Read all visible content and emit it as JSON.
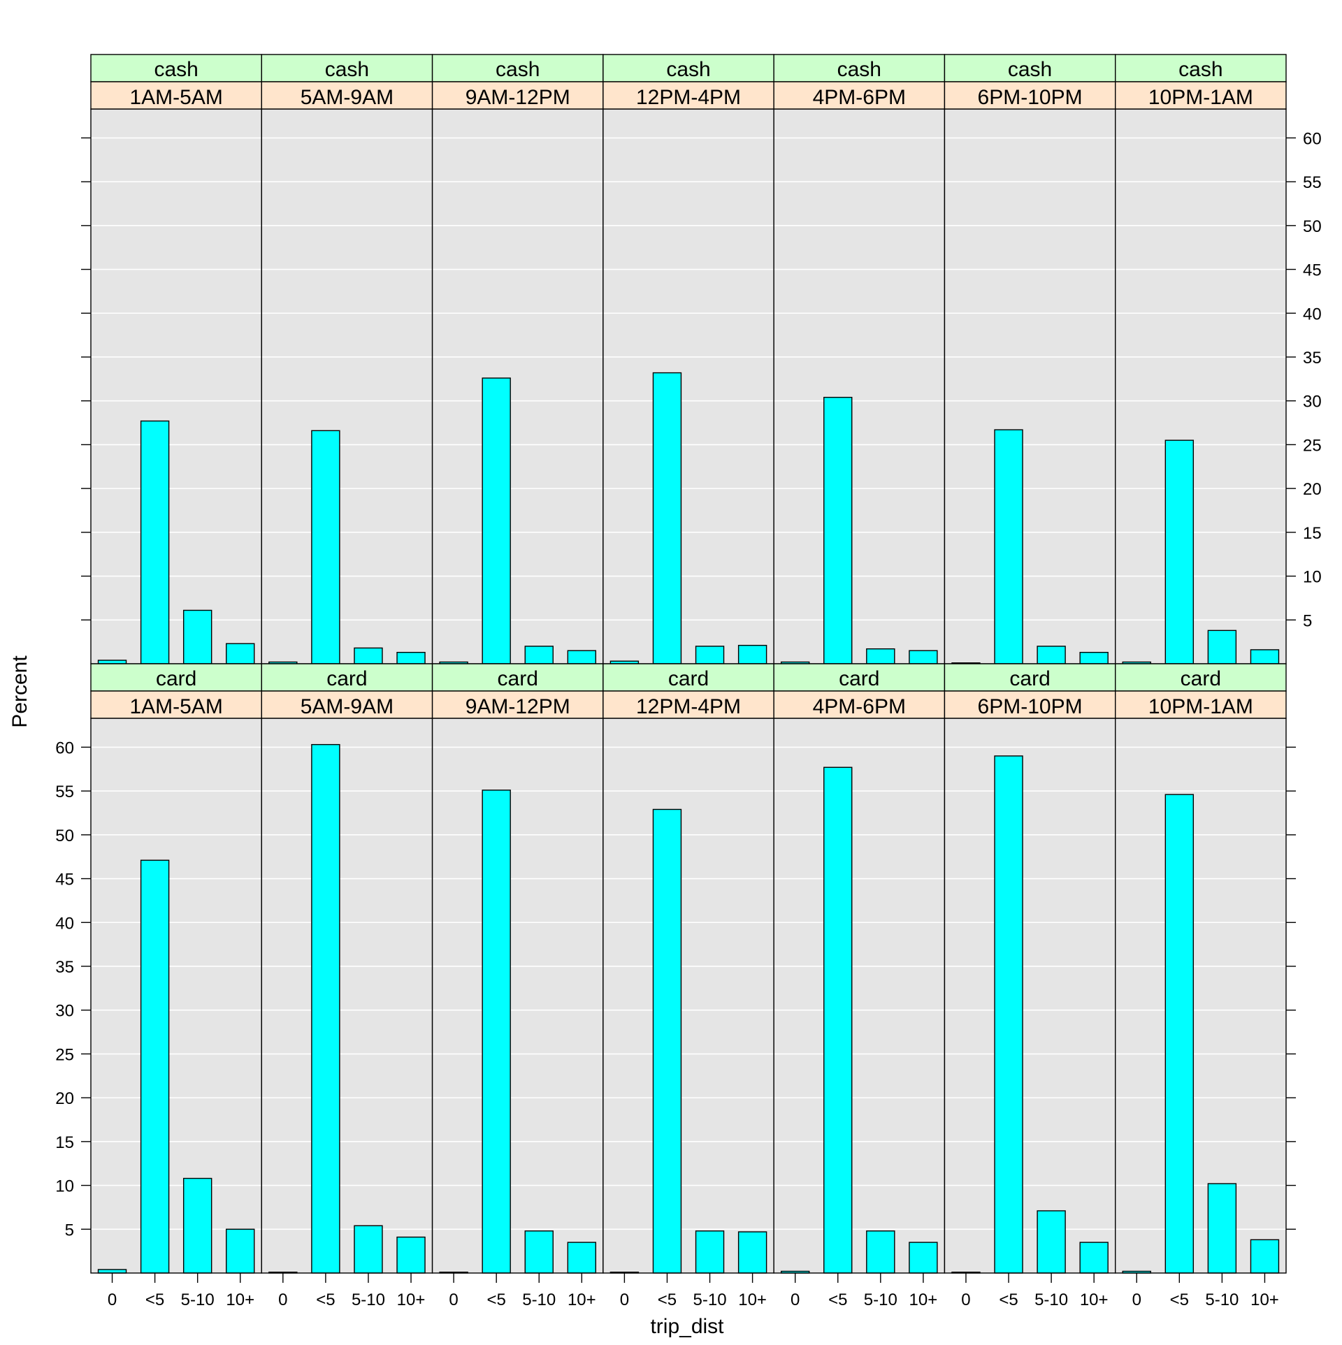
{
  "chart_data": {
    "type": "bar",
    "layout": "trellis",
    "xlabel": "trip_dist",
    "ylabel": "Percent",
    "categories": [
      "0",
      "<5",
      "5-10",
      "10+"
    ],
    "y_ticks": [
      5,
      10,
      15,
      20,
      25,
      30,
      35,
      40,
      45,
      50,
      55,
      60
    ],
    "ylim": [
      0,
      63.3
    ],
    "grid": true,
    "bar_color": "#00FFFF",
    "panel_background": "#E5E5E5",
    "strip_colors": {
      "payment": "#CCFFCC",
      "time": "#FFE5CC"
    },
    "time_bins": [
      "1AM-5AM",
      "5AM-9AM",
      "9AM-12PM",
      "12PM-4PM",
      "4PM-6PM",
      "6PM-10PM",
      "10PM-1AM"
    ],
    "rows": [
      {
        "payment": "cash",
        "panels": [
          {
            "time": "1AM-5AM",
            "values": [
              0.4,
              27.7,
              6.1,
              2.3
            ]
          },
          {
            "time": "5AM-9AM",
            "values": [
              0.2,
              26.6,
              1.8,
              1.3
            ]
          },
          {
            "time": "9AM-12PM",
            "values": [
              0.2,
              32.6,
              2.0,
              1.5
            ]
          },
          {
            "time": "12PM-4PM",
            "values": [
              0.3,
              33.2,
              2.0,
              2.1
            ]
          },
          {
            "time": "4PM-6PM",
            "values": [
              0.2,
              30.4,
              1.7,
              1.5
            ]
          },
          {
            "time": "6PM-10PM",
            "values": [
              0.1,
              26.7,
              2.0,
              1.3
            ]
          },
          {
            "time": "10PM-1AM",
            "values": [
              0.2,
              25.5,
              3.8,
              1.6
            ]
          }
        ]
      },
      {
        "payment": "card",
        "panels": [
          {
            "time": "1AM-5AM",
            "values": [
              0.4,
              47.1,
              10.8,
              5.0
            ]
          },
          {
            "time": "5AM-9AM",
            "values": [
              0.1,
              60.3,
              5.4,
              4.1
            ]
          },
          {
            "time": "9AM-12PM",
            "values": [
              0.1,
              55.1,
              4.8,
              3.5
            ]
          },
          {
            "time": "12PM-4PM",
            "values": [
              0.1,
              52.9,
              4.8,
              4.7
            ]
          },
          {
            "time": "4PM-6PM",
            "values": [
              0.2,
              57.7,
              4.8,
              3.5
            ]
          },
          {
            "time": "6PM-10PM",
            "values": [
              0.1,
              59.0,
              7.1,
              3.5
            ]
          },
          {
            "time": "10PM-1AM",
            "values": [
              0.2,
              54.6,
              10.2,
              3.8
            ]
          }
        ]
      }
    ]
  }
}
